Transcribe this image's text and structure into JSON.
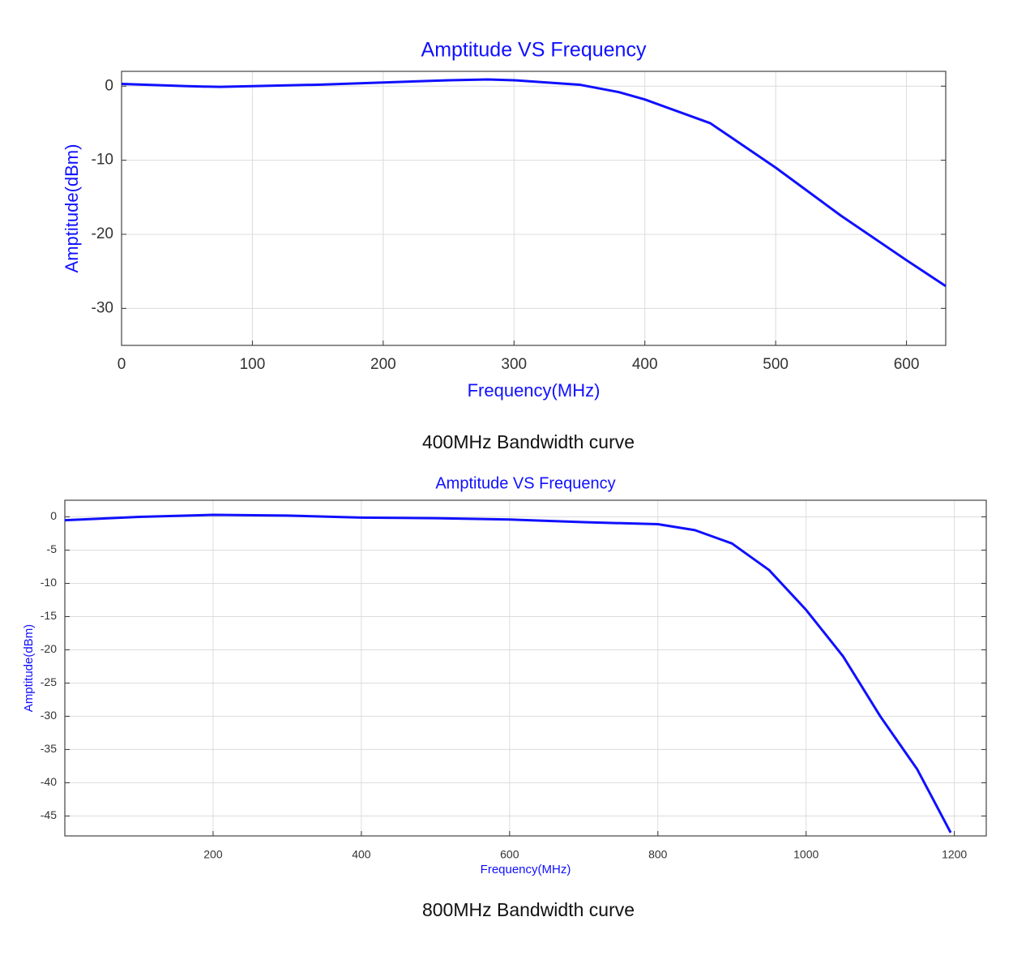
{
  "chart_data": [
    {
      "type": "line",
      "title": "Amptitude VS Frequency",
      "xlabel": "Frequency(MHz)",
      "ylabel": "Amptitude(dBm)",
      "caption": "400MHz Bandwidth curve",
      "x": [
        0,
        50,
        75,
        100,
        150,
        200,
        250,
        280,
        300,
        350,
        380,
        400,
        450,
        500,
        550,
        600,
        630
      ],
      "series": [
        {
          "color": "#1010ff",
          "values": [
            0.3,
            0,
            -0.1,
            0,
            0.2,
            0.5,
            0.8,
            0.9,
            0.8,
            0.2,
            -0.8,
            -1.8,
            -5,
            -11,
            -17.5,
            -23.5,
            -27
          ]
        }
      ],
      "xlim": [
        0,
        630
      ],
      "xticks": [
        0,
        100,
        200,
        300,
        400,
        500,
        600
      ],
      "ylim": [
        -35,
        2
      ],
      "yticks": [
        -30,
        -20,
        -10,
        0
      ],
      "grid": true
    },
    {
      "type": "line",
      "title": "Amptitude VS Frequency",
      "xlabel": "Frequency(MHz)",
      "ylabel": "Amptitude(dBm)",
      "caption": "800MHz Bandwidth curve",
      "x": [
        0,
        100,
        200,
        300,
        400,
        500,
        600,
        700,
        800,
        850,
        900,
        950,
        1000,
        1050,
        1100,
        1150,
        1195
      ],
      "series": [
        {
          "color": "#1010ff",
          "values": [
            -0.5,
            0,
            0.3,
            0.2,
            -0.1,
            -0.2,
            -0.4,
            -0.8,
            -1.1,
            -2,
            -4,
            -8,
            -14,
            -21,
            -30,
            -38,
            -47.5
          ]
        }
      ],
      "xlim": [
        0,
        1243
      ],
      "xticks": [
        200,
        400,
        600,
        800,
        1000,
        1200
      ],
      "ylim": [
        -48,
        2.5
      ],
      "yticks": [
        -45,
        -40,
        -35,
        -30,
        -25,
        -20,
        -15,
        -10,
        -5,
        0
      ],
      "grid": true
    }
  ]
}
